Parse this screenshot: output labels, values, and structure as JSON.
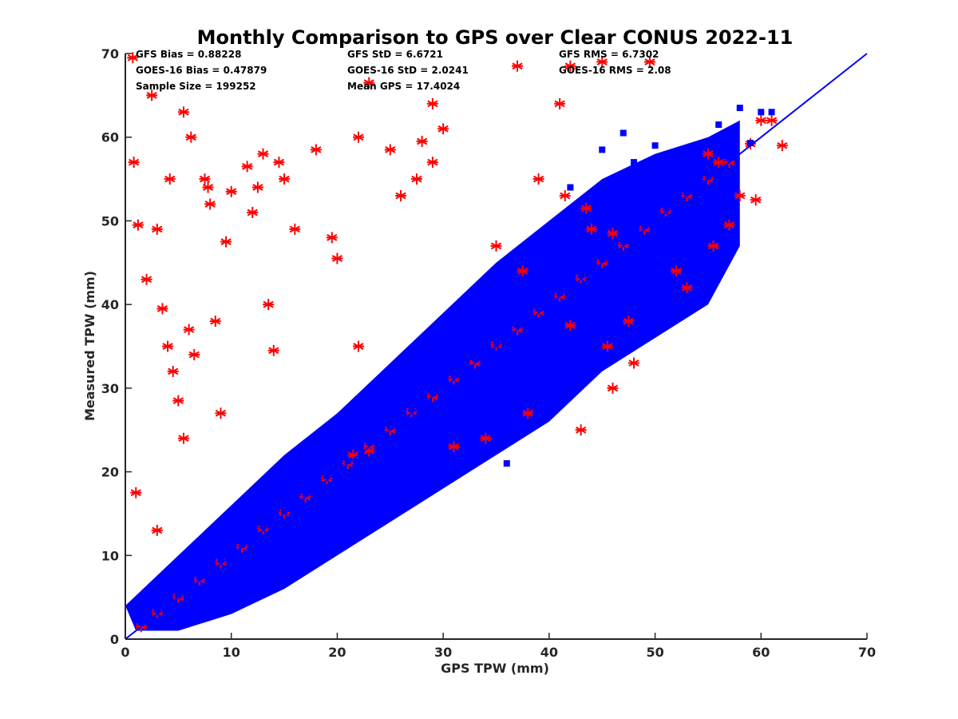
{
  "chart_data": {
    "type": "scatter",
    "title": "Monthly Comparison to GPS over Clear CONUS 2022-11",
    "xlabel": "GPS TPW (mm)",
    "ylabel": "Measured TPW (mm)",
    "xlim": [
      0,
      70
    ],
    "ylim": [
      0,
      70
    ],
    "xticks": [
      "0",
      "10",
      "20",
      "30",
      "40",
      "50",
      "60",
      "70"
    ],
    "yticks": [
      "0",
      "10",
      "20",
      "30",
      "40",
      "50",
      "60",
      "70"
    ],
    "grid": false,
    "stats": [
      "GFS Bias = 0.88228",
      "GFS StD = 6.6721",
      "GFS RMS = 6.7302",
      "GOES-16 Bias = 0.47879",
      "GOES-16 StD = 2.0241",
      "GOES-16 RMS = 2.08",
      "Sample Size = 199252",
      "Mean GPS = 17.4024"
    ],
    "series": [
      {
        "marker": "asterisk",
        "color": "#ff0000",
        "x": [
          1.5,
          3.0,
          5.0,
          7.0,
          9.0,
          11.0,
          13.0,
          15.0,
          17.0,
          19.0,
          21.0,
          23.0,
          25.0,
          27.0,
          29.0,
          31.0,
          33.0,
          35.0,
          37.0,
          39.0,
          41.0,
          43.0,
          45.0,
          47.0,
          49.0,
          51.0,
          53.0,
          55.0,
          57.0,
          59.0,
          61.0,
          62.0,
          0.8,
          1.2,
          2.0,
          3.5,
          4.0,
          4.5,
          5.0,
          5.5,
          6.0,
          6.5,
          7.5,
          8.0,
          8.5,
          9.0,
          10.0,
          11.5,
          12.0,
          13.0,
          13.5,
          14.0,
          15.0,
          16.0,
          18.0,
          19.5,
          20.0,
          22.0,
          23.0,
          25.0,
          26.0,
          28.0,
          29.0,
          3.0,
          4.2,
          5.5,
          6.2,
          7.8,
          9.5,
          12.5,
          14.5,
          0.7,
          2.5,
          1.0,
          3.0,
          21.5,
          22.0,
          23.0,
          27.5,
          29.0,
          30.0,
          37.0,
          41.0,
          42.0,
          44.0,
          45.0,
          49.5,
          31.0,
          34.0,
          38.0,
          43.0,
          46.0,
          48.0,
          35.0,
          37.5,
          42.0,
          45.5,
          47.5,
          39.0,
          41.5,
          43.5,
          46.0,
          52.0,
          55.0,
          57.0,
          59.5,
          56.0,
          58.0,
          60.0,
          53.0,
          55.5
        ],
        "y": [
          1.5,
          3.2,
          5.0,
          7.1,
          9.2,
          11.0,
          13.2,
          15.1,
          17.0,
          19.2,
          21.0,
          23.1,
          25.0,
          27.2,
          29.0,
          31.1,
          33.0,
          35.2,
          37.0,
          39.1,
          41.0,
          43.2,
          45.0,
          47.1,
          49.0,
          51.2,
          53.0,
          55.0,
          57.0,
          59.2,
          62.0,
          59.0,
          57.0,
          49.5,
          43.0,
          39.5,
          35.0,
          32.0,
          28.5,
          24.0,
          37.0,
          34.0,
          55.0,
          52.0,
          38.0,
          27.0,
          53.5,
          56.5,
          51.0,
          58.0,
          40.0,
          34.5,
          55.0,
          49.0,
          58.5,
          48.0,
          45.5,
          60.0,
          66.5,
          58.5,
          53.0,
          59.5,
          57.0,
          49.0,
          55.0,
          63.0,
          60.0,
          54.0,
          47.5,
          54.0,
          57.0,
          69.5,
          65.0,
          17.5,
          13.0,
          22.0,
          35.0,
          22.5,
          55.0,
          64.0,
          61.0,
          68.5,
          64.0,
          68.5,
          49.0,
          69.0,
          69.0,
          23.0,
          24.0,
          27.0,
          25.0,
          30.0,
          33.0,
          47.0,
          44.0,
          37.5,
          35.0,
          38.0,
          55.0,
          53.0,
          51.5,
          48.5,
          44.0,
          58.0,
          49.5,
          52.5,
          57.0,
          53.0,
          62.0,
          42.0,
          47.0
        ]
      },
      {
        "marker": "square",
        "color": "#0000ff",
        "x": [
          1.5,
          3.0,
          5.0,
          7.0,
          9.0,
          11.0,
          13.0,
          15.0,
          17.0,
          19.0,
          21.0,
          23.0,
          25.0,
          27.0,
          29.0,
          31.0,
          33.0,
          35.0,
          37.0,
          39.0,
          41.0,
          43.0,
          45.0,
          47.0,
          49.0,
          51.0,
          53.0,
          55.0,
          57.0,
          59.0,
          61.0,
          42.0,
          47.0,
          50.0,
          48.0,
          53.0,
          56.0,
          58.0,
          52.0,
          54.5,
          60.0,
          45.0,
          55.0,
          36.0,
          30.0,
          26.0,
          24.0
        ],
        "y": [
          2.0,
          3.5,
          5.3,
          7.4,
          9.5,
          11.3,
          13.5,
          15.3,
          17.4,
          19.5,
          21.3,
          23.5,
          25.4,
          27.5,
          29.4,
          31.5,
          33.5,
          35.4,
          37.5,
          39.5,
          41.4,
          43.5,
          45.4,
          47.5,
          49.4,
          51.5,
          53.4,
          55.3,
          57.5,
          59.3,
          63.0,
          54.0,
          60.5,
          59.0,
          57.0,
          58.5,
          61.5,
          63.5,
          46.0,
          43.0,
          63.0,
          58.5,
          42.0,
          21.0,
          20.0,
          19.0,
          16.5
        ]
      }
    ],
    "reference_line": {
      "x": [
        0,
        70
      ],
      "y": [
        0,
        70
      ],
      "color": "#0000ff"
    }
  }
}
